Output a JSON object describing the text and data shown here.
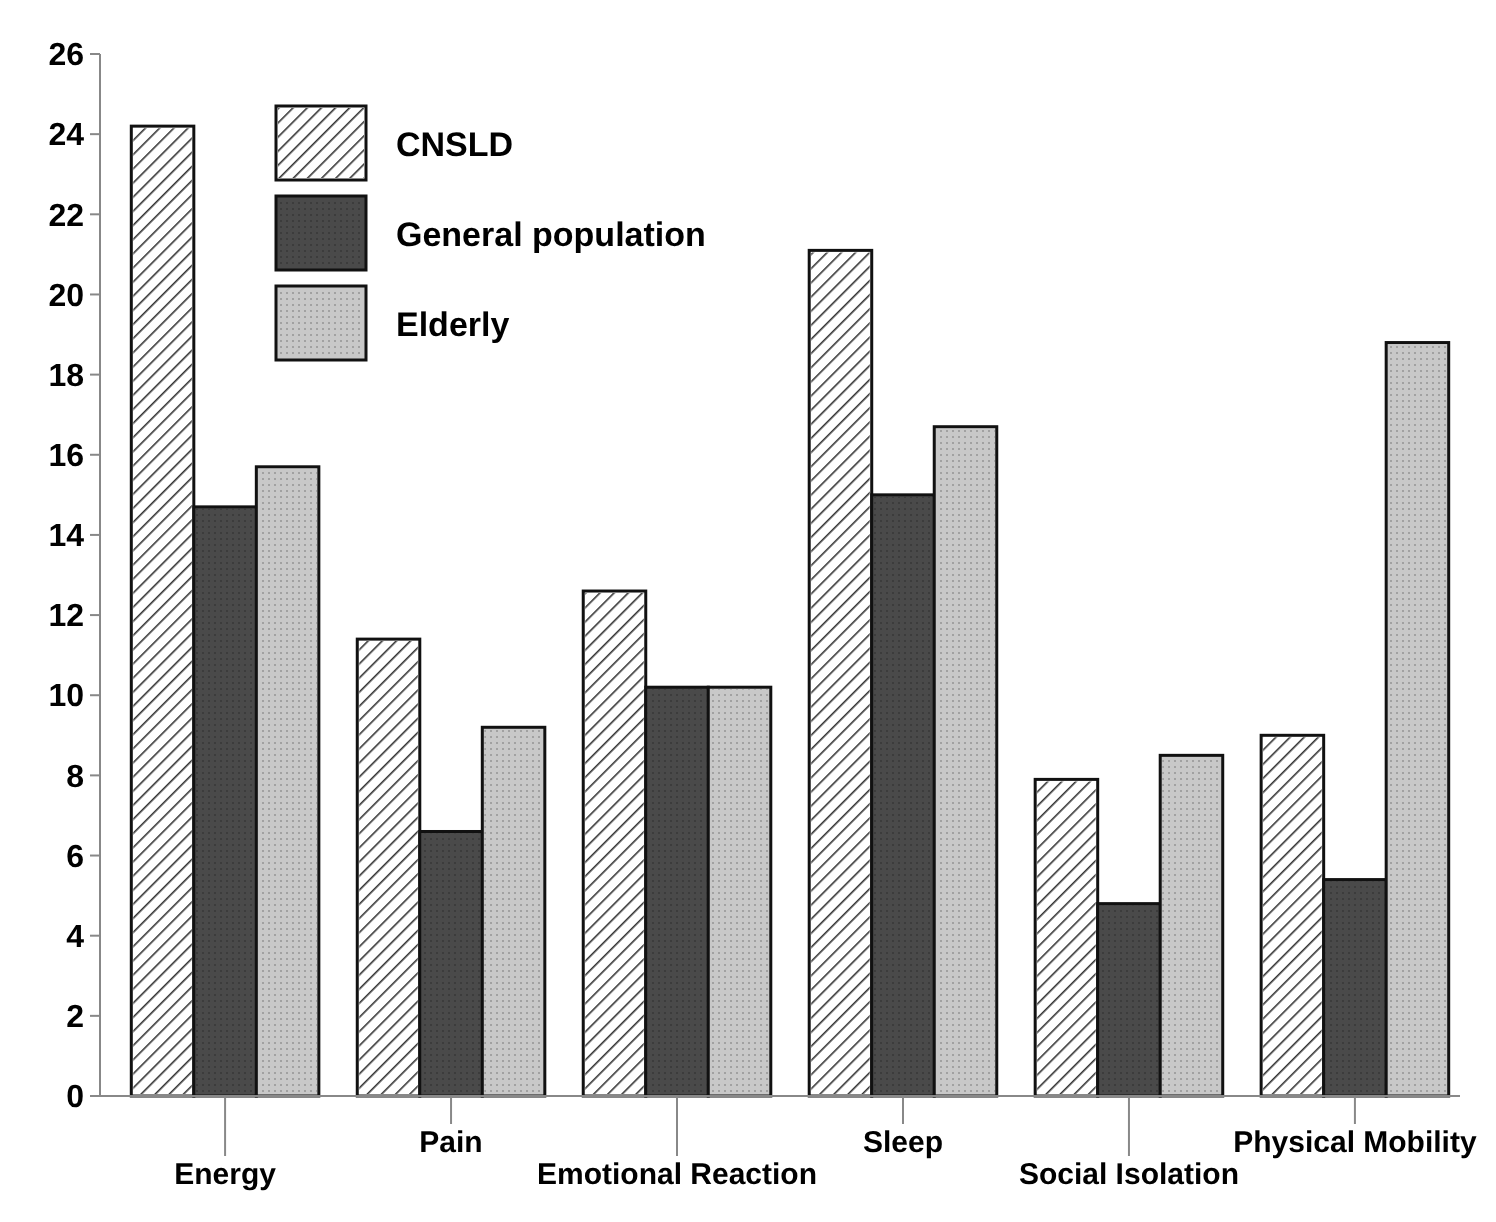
{
  "chart_data": {
    "type": "bar",
    "categories": [
      "Energy",
      "Pain",
      "Emotional Reaction",
      "Sleep",
      "Social Isolation",
      "Physical Mobility"
    ],
    "series": [
      {
        "name": "CNSLD",
        "color": "#ffffff",
        "values": [
          24.2,
          11.4,
          12.6,
          21.1,
          7.9,
          9.0
        ]
      },
      {
        "name": "General population",
        "color": "#4a4a4a",
        "values": [
          14.7,
          6.6,
          10.2,
          15.0,
          4.8,
          5.4
        ]
      },
      {
        "name": "Elderly",
        "color": "#c8c8c8",
        "values": [
          15.7,
          9.2,
          10.2,
          16.7,
          8.5,
          18.8
        ]
      }
    ],
    "ylim": [
      0,
      26
    ],
    "yticks": [
      0,
      2,
      4,
      6,
      8,
      10,
      12,
      14,
      16,
      18,
      20,
      22,
      24,
      26
    ],
    "legend": "top left",
    "grid": false
  }
}
